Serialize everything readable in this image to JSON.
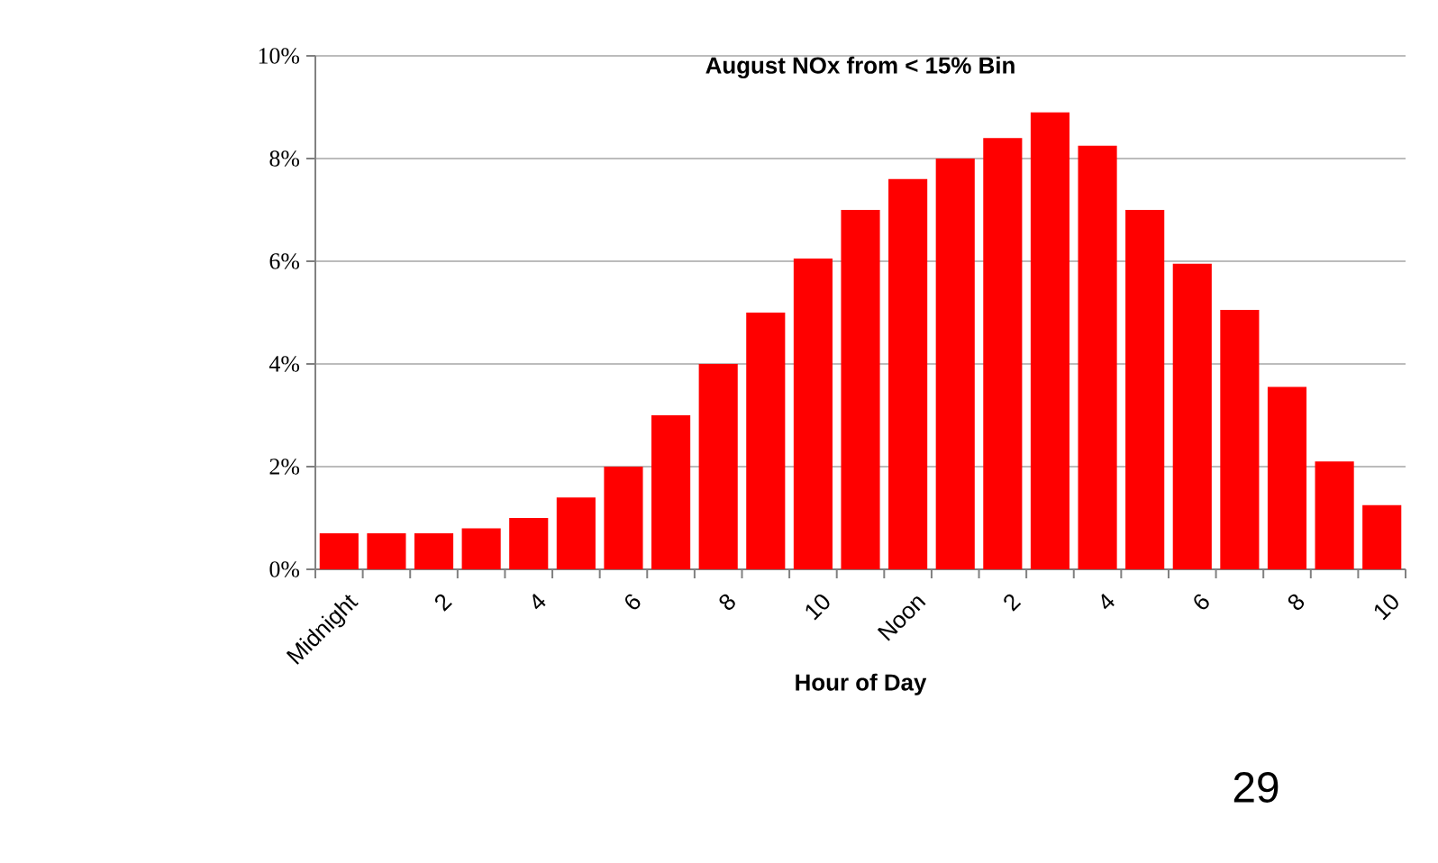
{
  "chart_data": {
    "type": "bar",
    "title": "August NOx from < 15% Bin",
    "xlabel": "Hour of Day",
    "categories": [
      "Midnight",
      null,
      "2",
      null,
      "4",
      null,
      "6",
      null,
      "8",
      null,
      "10",
      null,
      "Noon",
      null,
      "2",
      null,
      "4",
      null,
      "6",
      null,
      "8",
      null,
      "10"
    ],
    "values": [
      0.7,
      0.7,
      0.7,
      0.8,
      1.0,
      1.4,
      2.0,
      3.0,
      4.0,
      5.0,
      6.05,
      7.0,
      7.6,
      8.0,
      8.4,
      8.9,
      8.25,
      7.0,
      5.95,
      5.05,
      3.55,
      2.1,
      1.25
    ],
    "color": "#ff0000",
    "ylim": [
      0,
      10
    ],
    "yticks": [
      {
        "value": 0,
        "label": "0%"
      },
      {
        "value": 2,
        "label": "2%"
      },
      {
        "value": 4,
        "label": "4%"
      },
      {
        "value": 6,
        "label": "6%"
      },
      {
        "value": 8,
        "label": "8%"
      },
      {
        "value": 10,
        "label": "10%"
      }
    ],
    "grid": "y",
    "annotations": [
      "29"
    ]
  }
}
